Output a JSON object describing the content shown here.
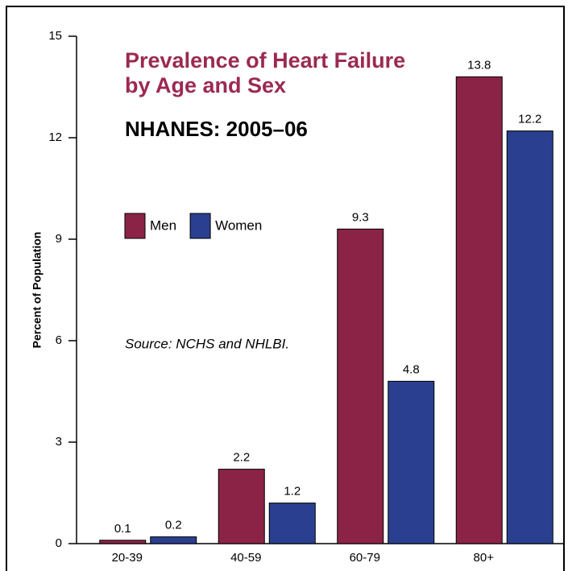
{
  "chart_data": {
    "type": "bar",
    "title": [
      "Prevalence of Heart Failure",
      "by Age and Sex"
    ],
    "subtitle": "NHANES: 2005–06",
    "annotation": "Source: NCHS and NHLBI.",
    "y_label": "Percent of Population",
    "categories": [
      "20-39",
      "40-59",
      "60-79",
      "80+"
    ],
    "series": [
      {
        "name": "Men",
        "color": "#8b2346",
        "values": [
          0.1,
          2.2,
          9.3,
          13.8
        ]
      },
      {
        "name": "Women",
        "color": "#2a3f8f",
        "values": [
          0.2,
          1.2,
          4.8,
          12.2
        ]
      }
    ],
    "ylim": [
      0,
      15
    ],
    "yticks": [
      0,
      3,
      6,
      9,
      12,
      15
    ]
  }
}
